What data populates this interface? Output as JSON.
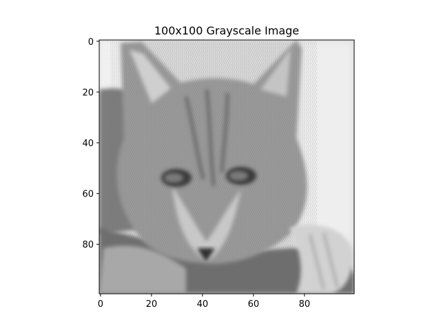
{
  "figure": {
    "title": "100x100 Grayscale Image"
  },
  "chart_data": {
    "type": "heatmap",
    "colormap": "gray",
    "image_size": [
      100,
      100
    ],
    "xlim": [
      -0.5,
      99.5
    ],
    "ylim": [
      99.5,
      -0.5
    ],
    "x_ticks": [
      0,
      20,
      40,
      60,
      80
    ],
    "y_ticks": [
      0,
      20,
      40,
      60,
      80
    ],
    "x_tick_labels": [
      "0",
      "20",
      "40",
      "60",
      "80"
    ],
    "y_tick_labels": [
      "0",
      "20",
      "40",
      "60",
      "80"
    ],
    "xlabel": "",
    "ylabel": "",
    "grid": false,
    "legend": "none"
  },
  "colors": {
    "background": "#ffffff",
    "axis": "#000000",
    "fur_light": "#c8c8c8",
    "fur_mid": "#8f8f8f",
    "fur_dark": "#4a4a4a",
    "wall": "#e6e6e6",
    "cushion": "#5a5a5a"
  }
}
